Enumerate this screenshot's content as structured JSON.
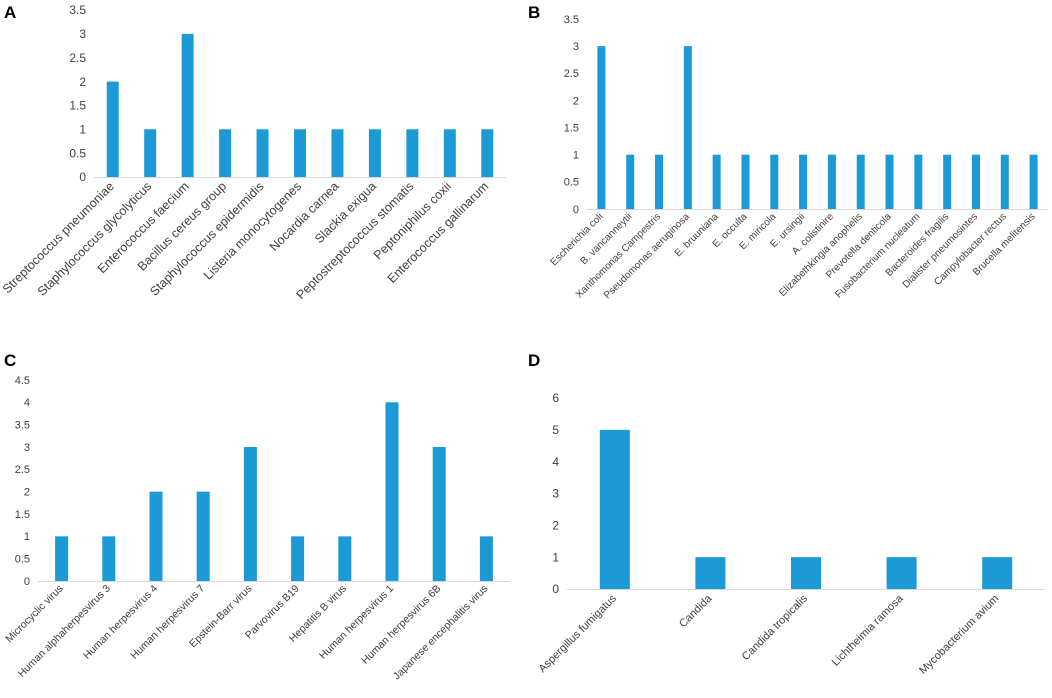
{
  "chart_data": [
    {
      "panel": "A",
      "type": "bar",
      "title": "",
      "xlabel": "",
      "ylabel": "",
      "ylim": [
        0,
        3.5
      ],
      "yticks": [
        "0",
        "0.5",
        "1",
        "1.5",
        "2",
        "2.5",
        "3",
        "3.5"
      ],
      "grid": false,
      "color": "#1c9ad6",
      "categories": [
        "Streptococcus pneumoniae",
        "Staphylococcus glycolyticus",
        "Enterococcus faecium",
        "Bacillus cereus group",
        "Staphylococcus epidermidis",
        "Listeria monocytogenes",
        "Nocardia carnea",
        "Slackia exigua",
        "Peptostreptococcus stomatis",
        "Peptoniphilus coxii",
        "Enterococcus gallinarum"
      ],
      "values": [
        2,
        1,
        3,
        1,
        1,
        1,
        1,
        1,
        1,
        1,
        1
      ]
    },
    {
      "panel": "B",
      "type": "bar",
      "title": "",
      "xlabel": "",
      "ylabel": "",
      "ylim": [
        0,
        3.5
      ],
      "yticks": [
        "0",
        "0.5",
        "1",
        "1.5",
        "2",
        "2.5",
        "3",
        "3.5"
      ],
      "grid": false,
      "color": "#1c9ad6",
      "categories": [
        "Escherichia coli",
        "B. vancanneytii",
        "Xanthomonas Campestris",
        "Pseudomonas aeruginosa",
        "E. bruuniana",
        "E. occulta",
        "E. miricola",
        "E. ursingii",
        "A. colistinire",
        "Elizabethkingia anophelis",
        "Prevotella denticola",
        "Fusobacterium nucleatum",
        "Bacteroides fragilis",
        "Dialister pneumosintes",
        "Campylobacter rectus",
        "Brucella melitensis"
      ],
      "values": [
        3,
        1,
        1,
        3,
        1,
        1,
        1,
        1,
        1,
        1,
        1,
        1,
        1,
        1,
        1,
        1
      ]
    },
    {
      "panel": "C",
      "type": "bar",
      "title": "",
      "xlabel": "",
      "ylabel": "",
      "ylim": [
        0,
        4.5
      ],
      "yticks": [
        "0",
        "0.5",
        "1",
        "1.5",
        "2",
        "2.5",
        "3",
        "3.5",
        "4",
        "4.5"
      ],
      "grid": false,
      "color": "#1c9ad6",
      "categories": [
        "Microcyclic virus",
        "Human alphaherpesvirus 3",
        "Human herpesvirus 4",
        "Human herpesvirus 7",
        "Epstein-Barr virus",
        "Parvovirus B19",
        "Hepatitis B virus",
        "Human herpesvirus 1",
        "Human herpesvirus 6B",
        "Japanese encephalitis virus"
      ],
      "values": [
        1,
        1,
        2,
        2,
        3,
        1,
        1,
        4,
        3,
        1
      ]
    },
    {
      "panel": "D",
      "type": "bar",
      "title": "",
      "xlabel": "",
      "ylabel": "",
      "ylim": [
        0,
        6
      ],
      "yticks": [
        "0",
        "1",
        "2",
        "3",
        "4",
        "5",
        "6"
      ],
      "grid": false,
      "color": "#1c9ad6",
      "categories": [
        "Aspergillus fumigatus",
        "Candida",
        "Candida tropicalis",
        "Lichtheimia ramosa",
        "Mycobacterium avium"
      ],
      "values": [
        5,
        1,
        1,
        1,
        1
      ]
    }
  ]
}
